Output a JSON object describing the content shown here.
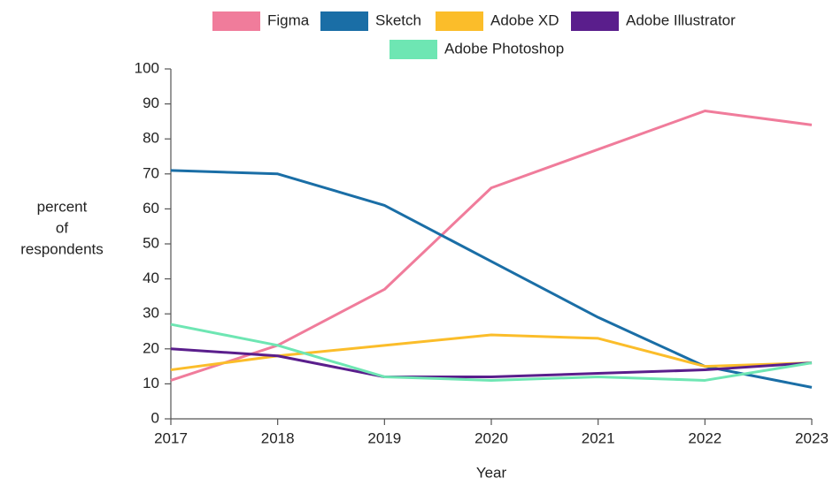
{
  "chart_data": {
    "type": "line",
    "y_label": [
      "percent",
      "of",
      "respondents"
    ],
    "x_label": "Year",
    "x": [
      2017,
      2018,
      2019,
      2020,
      2021,
      2022,
      2023
    ],
    "xlim": [
      2017,
      2023
    ],
    "xticks": [
      2017,
      2018,
      2019,
      2020,
      2021,
      2022,
      2023
    ],
    "ylim": [
      0,
      100
    ],
    "yticks": [
      0,
      10,
      20,
      30,
      40,
      50,
      60,
      70,
      80,
      90,
      100
    ],
    "grid": false,
    "legend": "top",
    "series": [
      {
        "name": "Figma",
        "color": "#f07c9b",
        "values": [
          11,
          21,
          37,
          66,
          77,
          88,
          84
        ]
      },
      {
        "name": "Sketch",
        "color": "#1a6ea6",
        "values": [
          71,
          70,
          61,
          45,
          29,
          15,
          9
        ]
      },
      {
        "name": "Adobe XD",
        "color": "#fbbd2a",
        "values": [
          14,
          18,
          21,
          24,
          23,
          15,
          16
        ]
      },
      {
        "name": "Adobe Illustrator",
        "color": "#5a1e8c",
        "values": [
          20,
          18,
          12,
          12,
          13,
          14,
          16
        ]
      },
      {
        "name": "Adobe Photoshop",
        "color": "#6ee6b3",
        "values": [
          27,
          21,
          12,
          11,
          12,
          11,
          16
        ]
      }
    ]
  }
}
